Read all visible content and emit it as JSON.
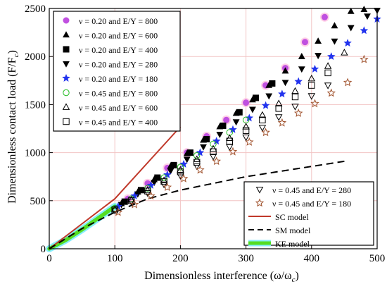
{
  "chart_data": {
    "type": "scatter",
    "xlabel": "Dimensionless interference (ω/ω",
    "xlabel_sub": "c",
    "xlabel_end": ")",
    "ylabel": "Dimensionless contact load (F/F",
    "ylabel_sub": "c",
    "ylabel_end": ")",
    "xlim": [
      0,
      500
    ],
    "ylim": [
      0,
      2500
    ],
    "xticks": [
      "0",
      "100",
      "200",
      "300",
      "400",
      "500"
    ],
    "yticks": [
      "0",
      "500",
      "1000",
      "1500",
      "2000",
      "2500"
    ],
    "grid": true,
    "legend_main_position": "top-left",
    "legend_secondary_position": "bottom-right",
    "series": [
      {
        "name": "ν = 0.20 and E/Y = 800",
        "marker": "circle-filled",
        "color": "#c050e0",
        "x": [
          120,
          150,
          180,
          210,
          240,
          270,
          300,
          330,
          360,
          390,
          420
        ],
        "y": [
          520,
          680,
          840,
          1000,
          1170,
          1340,
          1520,
          1700,
          1880,
          2150,
          2410
        ]
      },
      {
        "name": "ν = 0.20 and E/Y = 600",
        "marker": "triangle-up-filled",
        "color": "#000000",
        "x": [
          110,
          135,
          160,
          185,
          210,
          235,
          260,
          285,
          310,
          335,
          360,
          385,
          410,
          435,
          460,
          480
        ],
        "y": [
          470,
          590,
          720,
          860,
          990,
          1130,
          1270,
          1410,
          1550,
          1700,
          1850,
          2000,
          2160,
          2320,
          2470,
          2490
        ]
      },
      {
        "name": "ν = 0.20 and E/Y = 400",
        "marker": "square-filled",
        "color": "#000000",
        "x": [
          115,
          140,
          165,
          190,
          215,
          240,
          265,
          290,
          315,
          340
        ],
        "y": [
          490,
          610,
          740,
          870,
          1000,
          1140,
          1280,
          1420,
          1570,
          1720
        ]
      },
      {
        "name": "ν = 0.20 and E/Y = 280",
        "marker": "triangle-down-filled",
        "color": "#000000",
        "x": [
          110,
          135,
          160,
          185,
          210,
          235,
          260,
          285,
          310,
          335,
          360,
          385,
          410,
          435,
          460,
          485,
          500
        ],
        "y": [
          460,
          570,
          690,
          810,
          930,
          1060,
          1190,
          1320,
          1450,
          1590,
          1730,
          1870,
          2010,
          2160,
          2300,
          2420,
          2480
        ]
      },
      {
        "name": "ν = 0.20 and E/Y = 180",
        "marker": "star-filled",
        "color": "#2233ee",
        "x": [
          105,
          130,
          155,
          180,
          205,
          230,
          255,
          280,
          305,
          330,
          355,
          380,
          405,
          430,
          455,
          480,
          500
        ],
        "y": [
          440,
          550,
          660,
          770,
          880,
          1000,
          1120,
          1240,
          1360,
          1490,
          1610,
          1740,
          1870,
          2000,
          2140,
          2270,
          2390
        ]
      },
      {
        "name": "ν = 0.45 and E/Y = 800",
        "marker": "circle-open",
        "color": "#22bb22",
        "x": [
          100,
          125,
          150,
          175,
          200,
          225,
          250,
          275,
          300
        ],
        "y": [
          420,
          520,
          630,
          740,
          850,
          970,
          1090,
          1210,
          1340
        ]
      },
      {
        "name": "ν = 0.45 and E/Y = 600",
        "marker": "triangle-up-open",
        "color": "#000000",
        "x": [
          100,
          125,
          150,
          175,
          200,
          225,
          250,
          275,
          300,
          325,
          350,
          375,
          400,
          425,
          450
        ],
        "y": [
          410,
          510,
          610,
          710,
          820,
          930,
          1040,
          1150,
          1270,
          1390,
          1510,
          1640,
          1770,
          1900,
          2040
        ]
      },
      {
        "name": "ν = 0.45 and E/Y = 400",
        "marker": "square-open",
        "color": "#000000",
        "x": [
          100,
          125,
          150,
          175,
          200,
          225,
          250,
          275,
          300,
          325,
          350,
          375,
          400,
          425
        ],
        "y": [
          405,
          500,
          600,
          700,
          800,
          900,
          1010,
          1120,
          1230,
          1340,
          1460,
          1580,
          1700,
          1830
        ]
      },
      {
        "name": "ν = 0.45 and E/Y = 280",
        "marker": "triangle-down-open",
        "color": "#000000",
        "x": [
          100,
          125,
          150,
          175,
          200,
          225,
          250,
          275,
          300,
          325,
          350,
          375,
          400,
          425
        ],
        "y": [
          400,
          490,
          580,
          670,
          760,
          860,
          960,
          1060,
          1160,
          1260,
          1370,
          1480,
          1590,
          1700
        ]
      },
      {
        "name": "ν = 0.45 and E/Y = 180",
        "marker": "star-open",
        "color": "#a0522d",
        "x": [
          105,
          130,
          155,
          180,
          205,
          230,
          255,
          280,
          305,
          330,
          355,
          380,
          405,
          430,
          455,
          480
        ],
        "y": [
          380,
          460,
          550,
          640,
          730,
          820,
          910,
          1010,
          1110,
          1210,
          1310,
          1410,
          1510,
          1620,
          1730,
          1970
        ]
      }
    ],
    "lines": [
      {
        "name": "SC model",
        "style": "solid",
        "color": "#c0392b",
        "x": [
          0,
          100,
          200
        ],
        "y": [
          0,
          520,
          1270
        ]
      },
      {
        "name": "SM model",
        "style": "dashed",
        "color": "#000000",
        "x": [
          0,
          50,
          100,
          150,
          200,
          300,
          450
        ],
        "y": [
          0,
          210,
          380,
          520,
          610,
          750,
          910
        ]
      },
      {
        "name": "KE model",
        "style": "thick",
        "color": "#55dd22",
        "x": [
          0,
          25,
          50,
          75,
          100
        ],
        "y": [
          0,
          90,
          200,
          320,
          440
        ]
      }
    ],
    "legend_main": [
      0,
      1,
      2,
      3,
      4,
      5,
      6,
      7
    ],
    "legend_secondary": [
      8,
      9
    ],
    "legend_lines": [
      0,
      1,
      2
    ],
    "colors": {
      "ke_halo": "#88eeff",
      "grid": "#f2c4c4",
      "pink_marker": "#ffbbdd"
    }
  }
}
